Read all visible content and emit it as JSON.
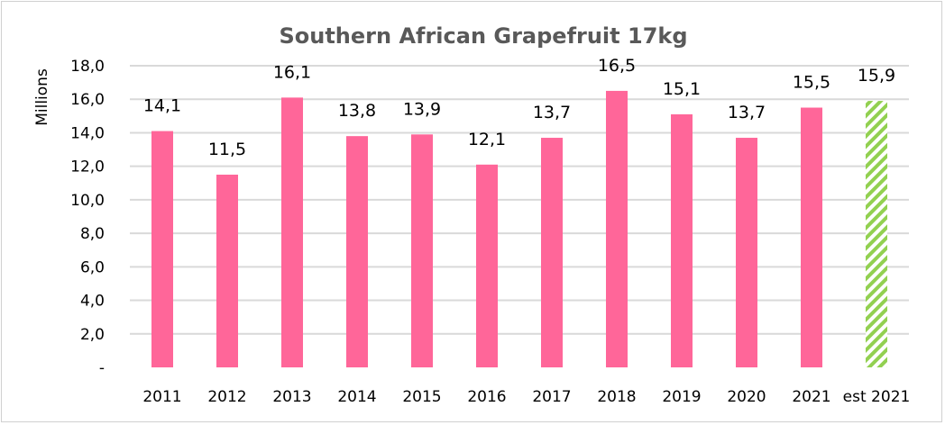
{
  "chart_data": {
    "type": "bar",
    "title": "Southern African Grapefruit 17kg",
    "xlabel": "",
    "ylabel": "Millions",
    "ylim": [
      0,
      18
    ],
    "yticks": [
      "-",
      "2,0",
      "4,0",
      "6,0",
      "8,0",
      "10,0",
      "12,0",
      "14,0",
      "16,0",
      "18,0"
    ],
    "grid": true,
    "categories": [
      "2011",
      "2012",
      "2013",
      "2014",
      "2015",
      "2016",
      "2017",
      "2018",
      "2019",
      "2020",
      "2021",
      "est 2021"
    ],
    "values": [
      14.1,
      11.5,
      16.1,
      13.8,
      13.9,
      12.1,
      13.7,
      16.5,
      15.1,
      13.7,
      15.5,
      15.9
    ],
    "data_labels": [
      "14,1",
      "11,5",
      "16,1",
      "13,8",
      "13,9",
      "12,1",
      "13,7",
      "16,5",
      "15,1",
      "13,7",
      "15,5",
      "15,9"
    ],
    "colors": {
      "actual": "#ff6699",
      "estimate": "#92d050",
      "grid": "#d9d9d9",
      "title": "#595959"
    },
    "estimate_style": "hatched"
  }
}
